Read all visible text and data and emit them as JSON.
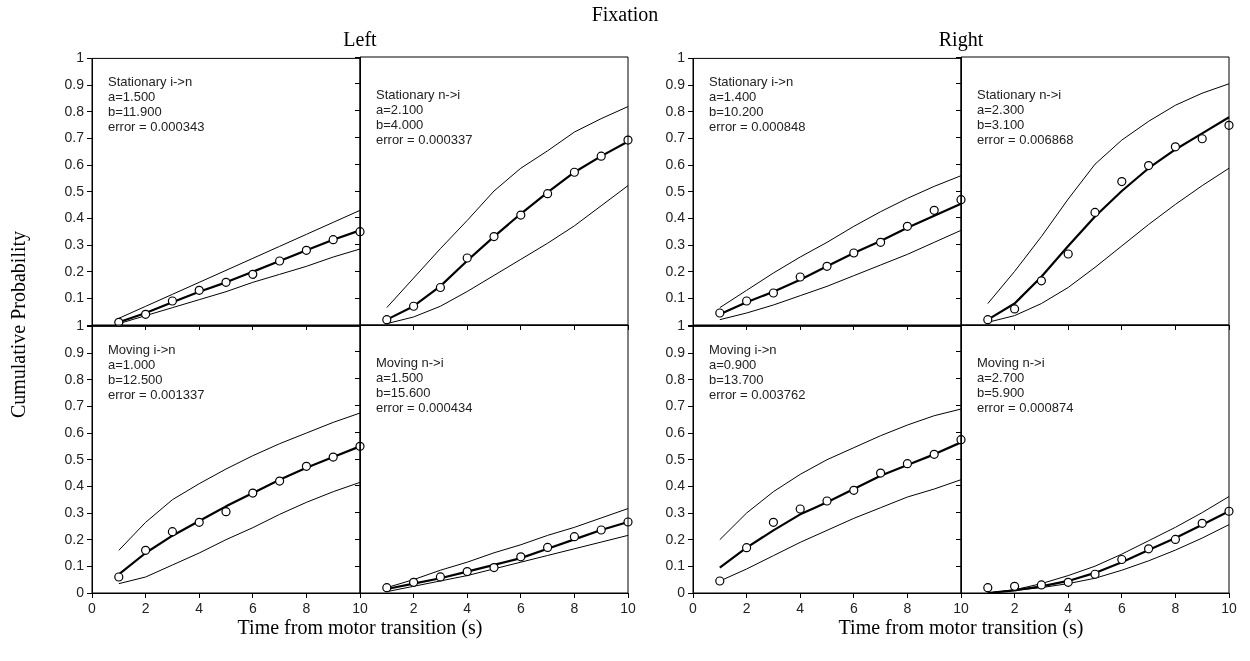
{
  "chart_data": [
    {
      "type": "line",
      "subtitle": "Left",
      "ylabel": "Cumulative Probability",
      "annotations": [
        "Stationary i->n",
        "a=1.500",
        "b=11.900",
        "error = 0.000343"
      ],
      "x": [
        1,
        2,
        3,
        4,
        5,
        6,
        7,
        8,
        9,
        10
      ],
      "xlim": [
        0,
        10
      ],
      "ylim": [
        0,
        1
      ],
      "xticks": [
        0,
        2,
        4,
        6,
        8,
        10
      ],
      "yticks": [
        {
          "value": 0,
          "label": null
        },
        0.1,
        0.2,
        0.3,
        0.4,
        0.5,
        0.6,
        0.7,
        0.8,
        0.9,
        1
      ],
      "tick_labels": "y",
      "series": [
        {
          "color": "#000000",
          "values": [
            0.01,
            0.045,
            0.085,
            0.125,
            0.16,
            0.2,
            0.24,
            0.28,
            0.32,
            0.355
          ]
        },
        {
          "color": "#000000",
          "values": [
            0.025,
            0.07,
            0.115,
            0.16,
            0.205,
            0.25,
            0.295,
            0.34,
            0.385,
            0.43
          ]
        },
        {
          "color": "#000000",
          "values": [
            0.005,
            0.035,
            0.065,
            0.095,
            0.125,
            0.16,
            0.19,
            0.22,
            0.255,
            0.285
          ]
        },
        {
          "type": "scatter",
          "color": "#000000",
          "marker": "circle",
          "values": [
            0.01,
            0.04,
            0.09,
            0.13,
            0.16,
            0.19,
            0.24,
            0.28,
            0.32,
            0.35
          ]
        }
      ]
    },
    {
      "type": "line",
      "title": "Fixation",
      "annotations": [
        "Stationary n->i",
        "a=2.100",
        "b=4.000",
        "error = 0.000337"
      ],
      "x": [
        1,
        2,
        3,
        4,
        5,
        6,
        7,
        8,
        9,
        10
      ],
      "xlim": [
        0,
        10
      ],
      "ylim": [
        0,
        1
      ],
      "xticks": [
        0,
        2,
        4,
        6,
        8,
        10
      ],
      "yticks": [
        0,
        0.1,
        0.2,
        0.3,
        0.4,
        0.5,
        0.6,
        0.7,
        0.8,
        0.9,
        1
      ],
      "tick_labels": false,
      "series": [
        {
          "color": "#000000",
          "values": [
            0.02,
            0.07,
            0.145,
            0.24,
            0.33,
            0.415,
            0.495,
            0.57,
            0.63,
            0.685
          ]
        },
        {
          "color": "#000000",
          "values": [
            0.065,
            0.175,
            0.285,
            0.39,
            0.5,
            0.585,
            0.65,
            0.72,
            0.77,
            0.815
          ]
        },
        {
          "color": "#000000",
          "values": [
            0.005,
            0.03,
            0.07,
            0.125,
            0.185,
            0.245,
            0.305,
            0.37,
            0.445,
            0.52
          ]
        },
        {
          "type": "scatter",
          "color": "#000000",
          "marker": "circle",
          "values": [
            0.02,
            0.07,
            0.14,
            0.25,
            0.33,
            0.41,
            0.49,
            0.57,
            0.63,
            0.69
          ]
        }
      ]
    },
    {
      "type": "line",
      "subtitle": "Right",
      "annotations": [
        "Stationary i->n",
        "a=1.400",
        "b=10.200",
        "error = 0.000848"
      ],
      "x": [
        1,
        2,
        3,
        4,
        5,
        6,
        7,
        8,
        9,
        10
      ],
      "xlim": [
        0,
        10
      ],
      "ylim": [
        0,
        1
      ],
      "xticks": [
        0,
        2,
        4,
        6,
        8,
        10
      ],
      "yticks": [
        {
          "value": 0,
          "label": null
        },
        0.1,
        0.2,
        0.3,
        0.4,
        0.5,
        0.6,
        0.7,
        0.8,
        0.9,
        1
      ],
      "tick_labels": "y",
      "series": [
        {
          "color": "#000000",
          "values": [
            0.04,
            0.085,
            0.125,
            0.17,
            0.22,
            0.27,
            0.315,
            0.365,
            0.41,
            0.455
          ]
        },
        {
          "color": "#000000",
          "values": [
            0.065,
            0.13,
            0.195,
            0.255,
            0.31,
            0.37,
            0.425,
            0.475,
            0.52,
            0.56
          ]
        },
        {
          "color": "#000000",
          "values": [
            0.02,
            0.045,
            0.075,
            0.11,
            0.145,
            0.185,
            0.225,
            0.265,
            0.31,
            0.355
          ]
        },
        {
          "type": "scatter",
          "color": "#000000",
          "marker": "circle",
          "values": [
            0.045,
            0.09,
            0.12,
            0.18,
            0.22,
            0.27,
            0.31,
            0.37,
            0.43,
            0.47
          ]
        }
      ]
    },
    {
      "type": "line",
      "annotations": [
        "Stationary n->i",
        "a=2.300",
        "b=3.100",
        "error = 0.006868"
      ],
      "x": [
        1,
        2,
        3,
        4,
        5,
        6,
        7,
        8,
        9,
        10
      ],
      "xlim": [
        0,
        10
      ],
      "ylim": [
        0,
        1
      ],
      "xticks": [
        0,
        2,
        4,
        6,
        8,
        10
      ],
      "yticks": [
        0,
        0.1,
        0.2,
        0.3,
        0.4,
        0.5,
        0.6,
        0.7,
        0.8,
        0.9,
        1
      ],
      "tick_labels": false,
      "series": [
        {
          "color": "#000000",
          "values": [
            0.02,
            0.08,
            0.18,
            0.295,
            0.405,
            0.5,
            0.585,
            0.655,
            0.715,
            0.775
          ]
        },
        {
          "color": "#000000",
          "values": [
            0.08,
            0.2,
            0.33,
            0.47,
            0.6,
            0.69,
            0.76,
            0.82,
            0.865,
            0.9
          ]
        },
        {
          "color": "#000000",
          "values": [
            0.01,
            0.035,
            0.08,
            0.14,
            0.215,
            0.295,
            0.375,
            0.45,
            0.52,
            0.585
          ]
        },
        {
          "type": "scatter",
          "color": "#000000",
          "marker": "circle",
          "values": [
            0.02,
            0.06,
            0.165,
            0.265,
            0.42,
            0.535,
            0.595,
            0.665,
            0.695,
            0.745
          ]
        }
      ]
    },
    {
      "type": "line",
      "xlabel": "Time from motor transition (s)",
      "annotations": [
        "Moving i->n",
        "a=1.000",
        "b=12.500",
        "error = 0.001337"
      ],
      "x": [
        1,
        2,
        3,
        4,
        5,
        6,
        7,
        8,
        9,
        10
      ],
      "xlim": [
        0,
        10
      ],
      "ylim": [
        0,
        1
      ],
      "xticks": [
        0,
        2,
        4,
        6,
        8,
        10
      ],
      "yticks": [
        0,
        0.1,
        0.2,
        0.3,
        0.4,
        0.5,
        0.6,
        0.7,
        0.8,
        0.9,
        1
      ],
      "series": [
        {
          "color": "#000000",
          "values": [
            0.07,
            0.15,
            0.215,
            0.27,
            0.325,
            0.375,
            0.425,
            0.47,
            0.51,
            0.55
          ]
        },
        {
          "color": "#000000",
          "values": [
            0.16,
            0.265,
            0.35,
            0.41,
            0.465,
            0.515,
            0.56,
            0.6,
            0.64,
            0.675
          ]
        },
        {
          "color": "#000000",
          "values": [
            0.035,
            0.06,
            0.105,
            0.15,
            0.2,
            0.245,
            0.295,
            0.34,
            0.38,
            0.415
          ]
        },
        {
          "type": "scatter",
          "color": "#000000",
          "marker": "circle",
          "values": [
            0.06,
            0.16,
            0.23,
            0.265,
            0.305,
            0.375,
            0.42,
            0.475,
            0.51,
            0.55
          ]
        }
      ]
    },
    {
      "type": "line",
      "annotations": [
        "Moving n->i",
        "a=1.500",
        "b=15.600",
        "error = 0.000434"
      ],
      "x": [
        1,
        2,
        3,
        4,
        5,
        6,
        7,
        8,
        9,
        10
      ],
      "xlim": [
        0,
        10
      ],
      "ylim": [
        0,
        1
      ],
      "xticks": [
        {
          "value": 0,
          "label": null
        },
        2,
        4,
        6,
        8,
        10
      ],
      "yticks": [
        0,
        0.1,
        0.2,
        0.3,
        0.4,
        0.5,
        0.6,
        0.7,
        0.8,
        0.9,
        1
      ],
      "tick_labels": "x",
      "series": [
        {
          "color": "#000000",
          "values": [
            0.015,
            0.035,
            0.055,
            0.08,
            0.105,
            0.13,
            0.165,
            0.2,
            0.235,
            0.265
          ]
        },
        {
          "color": "#000000",
          "values": [
            0.02,
            0.05,
            0.085,
            0.115,
            0.15,
            0.18,
            0.215,
            0.245,
            0.28,
            0.315
          ]
        },
        {
          "color": "#000000",
          "values": [
            0.005,
            0.025,
            0.045,
            0.065,
            0.09,
            0.115,
            0.14,
            0.165,
            0.19,
            0.215
          ]
        },
        {
          "type": "scatter",
          "color": "#000000",
          "marker": "circle",
          "values": [
            0.02,
            0.04,
            0.06,
            0.08,
            0.095,
            0.135,
            0.17,
            0.21,
            0.235,
            0.265
          ]
        }
      ]
    },
    {
      "type": "line",
      "xlabel": "Time from motor transition (s)",
      "annotations": [
        "Moving i->n",
        "a=0.900",
        "b=13.700",
        "error = 0.003762"
      ],
      "x": [
        1,
        2,
        3,
        4,
        5,
        6,
        7,
        8,
        9,
        10
      ],
      "xlim": [
        0,
        10
      ],
      "ylim": [
        0,
        1
      ],
      "xticks": [
        0,
        2,
        4,
        6,
        8,
        10
      ],
      "yticks": [
        0,
        0.1,
        0.2,
        0.3,
        0.4,
        0.5,
        0.6,
        0.7,
        0.8,
        0.9,
        1
      ],
      "series": [
        {
          "color": "#000000",
          "values": [
            0.095,
            0.17,
            0.235,
            0.295,
            0.34,
            0.39,
            0.44,
            0.48,
            0.52,
            0.565
          ]
        },
        {
          "color": "#000000",
          "values": [
            0.2,
            0.3,
            0.38,
            0.445,
            0.5,
            0.545,
            0.59,
            0.63,
            0.665,
            0.69
          ]
        },
        {
          "color": "#000000",
          "values": [
            0.045,
            0.09,
            0.14,
            0.19,
            0.235,
            0.28,
            0.32,
            0.36,
            0.39,
            0.425
          ]
        },
        {
          "type": "scatter",
          "color": "#000000",
          "marker": "circle",
          "values": [
            0.045,
            0.17,
            0.265,
            0.315,
            0.345,
            0.385,
            0.45,
            0.485,
            0.52,
            0.575
          ]
        }
      ]
    },
    {
      "type": "line",
      "annotations": [
        "Moving n->i",
        "a=2.700",
        "b=5.900",
        "error = 0.000874"
      ],
      "x": [
        1,
        2,
        3,
        4,
        5,
        6,
        7,
        8,
        9,
        10
      ],
      "xlim": [
        0,
        10
      ],
      "ylim": [
        0,
        1
      ],
      "xticks": [
        {
          "value": 0,
          "label": null
        },
        2,
        4,
        6,
        8,
        10
      ],
      "yticks": [
        0,
        0.1,
        0.2,
        0.3,
        0.4,
        0.5,
        0.6,
        0.7,
        0.8,
        0.9,
        1
      ],
      "tick_labels": "x",
      "series": [
        {
          "color": "#000000",
          "values": [
            0,
            0.01,
            0.025,
            0.045,
            0.075,
            0.115,
            0.16,
            0.205,
            0.255,
            0.305
          ]
        },
        {
          "color": "#000000",
          "values": [
            0,
            0.012,
            0.035,
            0.065,
            0.1,
            0.145,
            0.195,
            0.245,
            0.3,
            0.36
          ]
        },
        {
          "color": "#000000",
          "values": [
            0,
            0.01,
            0.02,
            0.035,
            0.055,
            0.085,
            0.12,
            0.16,
            0.205,
            0.255
          ]
        },
        {
          "type": "scatter",
          "color": "#000000",
          "marker": "circle",
          "values": [
            0.02,
            0.025,
            0.03,
            0.04,
            0.07,
            0.125,
            0.165,
            0.2,
            0.26,
            0.305
          ]
        }
      ]
    }
  ]
}
